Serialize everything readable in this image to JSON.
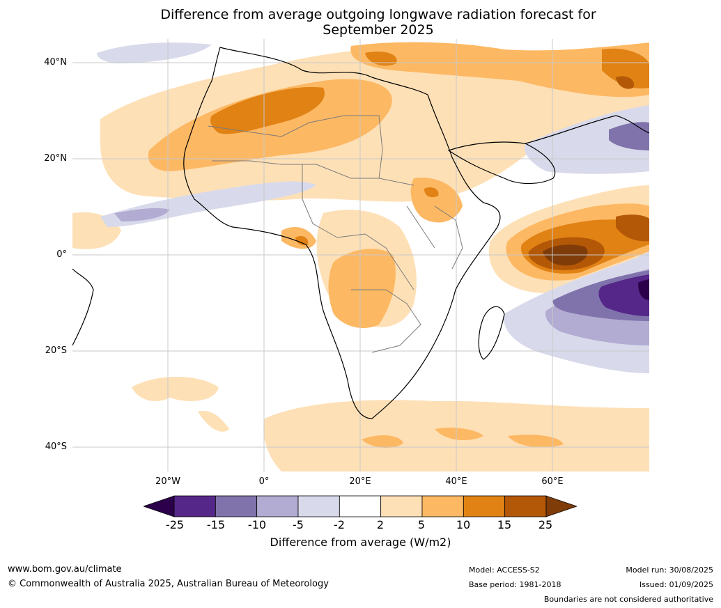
{
  "title_line1": "Difference from average outgoing longwave radiation forecast for",
  "title_line2": "September 2025",
  "lat_labels": [
    "40°N",
    "20°N",
    "0°",
    "20°S",
    "40°S"
  ],
  "lon_labels": [
    "20°W",
    "0°",
    "20°E",
    "40°E",
    "60°E"
  ],
  "colorbar": {
    "title": "Difference from average (W/m2)",
    "ticks": [
      "-25",
      "-15",
      "-10",
      "-5",
      "-2",
      "2",
      "5",
      "10",
      "15",
      "25"
    ],
    "colors": [
      "#2d004b",
      "#542788",
      "#8073ac",
      "#b2abd2",
      "#d8daeb",
      "#ffffff",
      "#fee0b6",
      "#fdb863",
      "#e08214",
      "#b35806",
      "#7f3b08"
    ]
  },
  "footer": {
    "website": "www.bom.gov.au/climate",
    "copyright": "© Commonwealth of Australia 2025, Australian Bureau of Meteorology",
    "model": "Model: ACCESS-S2",
    "base_period": "Base period: 1981-2018",
    "model_run": "Model run: 30/08/2025",
    "issued": "Issued: 01/09/2025",
    "disclaimer": "Boundaries are not considered authoritative"
  }
}
